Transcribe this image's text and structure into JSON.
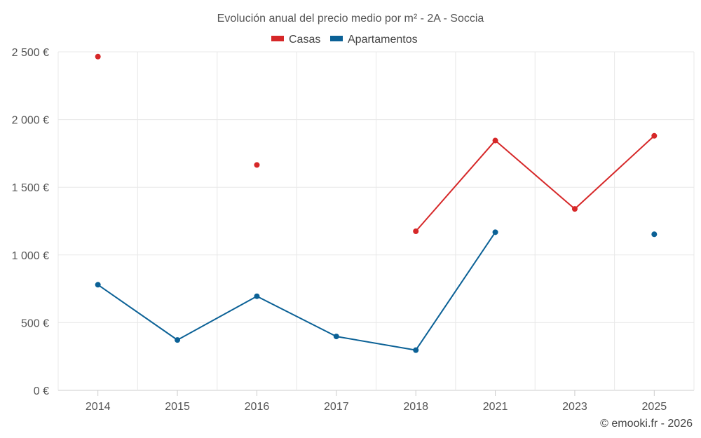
{
  "chart_data": {
    "type": "line",
    "title": "Evolución anual del precio medio por m² - 2A - Soccia",
    "categories": [
      "2014",
      "2015",
      "2016",
      "2017",
      "2018",
      "2021",
      "2023",
      "2025"
    ],
    "ylim": [
      0,
      2500
    ],
    "yticks": [
      {
        "value": 0,
        "label": "0 €"
      },
      {
        "value": 500,
        "label": "500 €"
      },
      {
        "value": 1000,
        "label": "1 000 €"
      },
      {
        "value": 1500,
        "label": "1 500 €"
      },
      {
        "value": 2000,
        "label": "2 000 €"
      },
      {
        "value": 2500,
        "label": "2 500 €"
      }
    ],
    "grid": true,
    "legend_position": "top-center",
    "series": [
      {
        "name": "Casas",
        "color": "#d62728",
        "values": [
          2465,
          null,
          1665,
          null,
          1175,
          1845,
          1340,
          1880
        ]
      },
      {
        "name": "Apartamentos",
        "color": "#0b6196",
        "values": [
          780,
          372,
          695,
          398,
          297,
          1168,
          null,
          1153
        ]
      }
    ]
  },
  "credit": "© emooki.fr - 2026"
}
